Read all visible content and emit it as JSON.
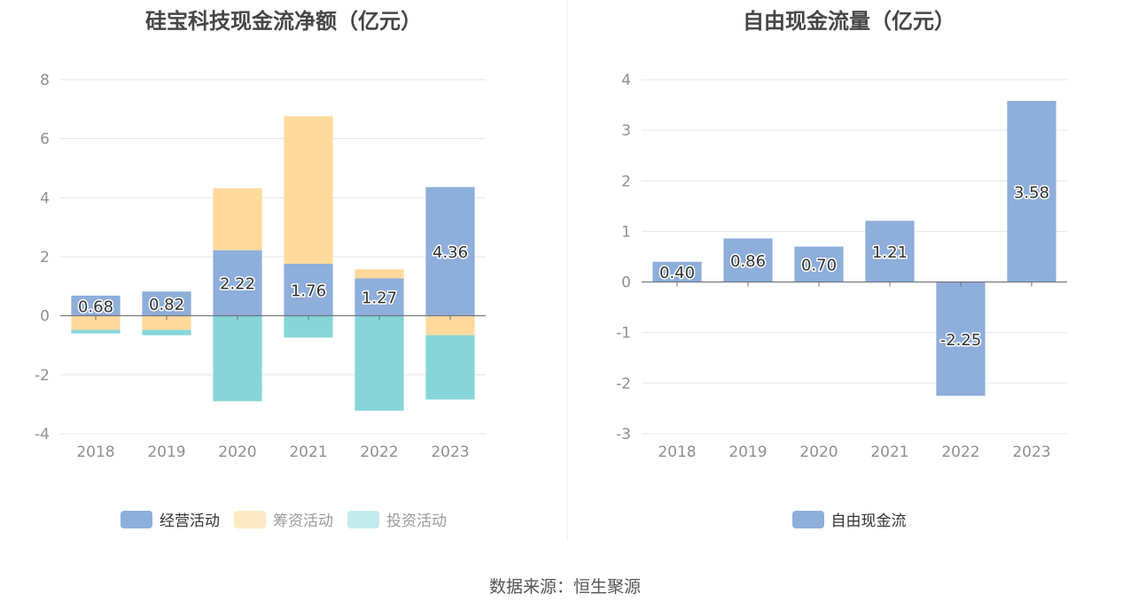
{
  "chart_data": [
    {
      "type": "bar",
      "stacked": true,
      "title": "硅宝科技现金流净额（亿元）",
      "categories": [
        "2018",
        "2019",
        "2020",
        "2021",
        "2022",
        "2023"
      ],
      "series": [
        {
          "name": "经营活动",
          "color": "#8eaedb",
          "values": [
            0.68,
            0.82,
            2.22,
            1.76,
            1.27,
            4.36
          ],
          "labels": [
            "0.68",
            "0.82",
            "2.22",
            "1.76",
            "1.27",
            "4.36"
          ]
        },
        {
          "name": "筹资活动",
          "color": "#fed99b",
          "values": [
            -0.48,
            -0.48,
            2.1,
            5.0,
            0.3,
            -0.66
          ]
        },
        {
          "name": "投资活动",
          "color": "#86d5d8",
          "values": [
            -0.12,
            -0.18,
            -2.9,
            -0.74,
            -3.22,
            -2.18
          ]
        }
      ],
      "ylim": [
        -4,
        8
      ],
      "yticks": [
        "-4",
        "-2",
        "0",
        "2",
        "4",
        "6",
        "8"
      ],
      "grid": true,
      "legend_position": "bottom"
    },
    {
      "type": "bar",
      "title": "自由现金流量（亿元）",
      "categories": [
        "2018",
        "2019",
        "2020",
        "2021",
        "2022",
        "2023"
      ],
      "series": [
        {
          "name": "自由现金流",
          "color": "#8eaedb",
          "values": [
            0.4,
            0.86,
            0.7,
            1.21,
            -2.25,
            3.58
          ],
          "labels": [
            "0.40",
            "0.86",
            "0.70",
            "1.21",
            "-2.25",
            "3.58"
          ]
        }
      ],
      "ylim": [
        -3,
        4
      ],
      "yticks": [
        "-3",
        "-2",
        "-1",
        "0",
        "1",
        "2",
        "3",
        "4"
      ],
      "grid": true,
      "legend_position": "bottom"
    }
  ],
  "source": "数据来源：恒生聚源"
}
